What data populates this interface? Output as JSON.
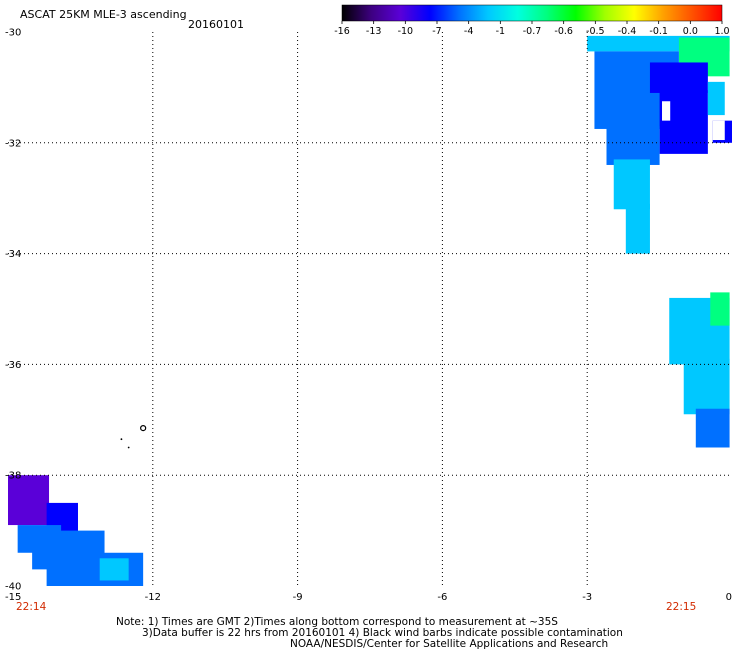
{
  "header": {
    "title": "ASCAT 25KM MLE-3 ascending",
    "date": "20160101"
  },
  "colorbar": {
    "tick_labels": [
      "-16",
      "-13",
      "-10",
      "-7",
      "-4",
      "-1",
      "-0.7",
      "-0.6",
      "-0.5",
      "-0.4",
      "-0.1",
      "0.0",
      "1.0"
    ],
    "gradient_stops": [
      "#000000",
      "#3d0080",
      "#5a00d8",
      "#0000ff",
      "#0070ff",
      "#00c8ff",
      "#00ffe0",
      "#00ff80",
      "#00ff00",
      "#a0ff00",
      "#ffff00",
      "#ffa000",
      "#ff5000",
      "#ff0000"
    ]
  },
  "map": {
    "lat_labels": [
      "-30",
      "-32",
      "-34",
      "-36",
      "-38",
      "-40"
    ],
    "lon_labels": [
      "-15",
      "-12",
      "-9",
      "-6",
      "-3",
      "0"
    ],
    "lat_range": [
      -40,
      -30
    ],
    "lon_range": [
      -15,
      0
    ],
    "times": {
      "left": "22:14",
      "right": "22:15"
    },
    "swaths": [
      {
        "name": "upper-right-swath",
        "cells": [
          {
            "lon0": -3.0,
            "lon1": -0.05,
            "lat0": -30.07,
            "lat1": -30.35,
            "value": -1
          },
          {
            "lon0": -1.1,
            "lon1": -0.05,
            "lat0": -30.1,
            "lat1": -30.8,
            "value": -0.5
          },
          {
            "lon0": -2.85,
            "lon1": -1.1,
            "lat0": -30.35,
            "lat1": -31.75,
            "value": -4
          },
          {
            "lon0": -1.7,
            "lon1": -0.5,
            "lat0": -30.55,
            "lat1": -31.1,
            "value": -7
          },
          {
            "lon0": -1.5,
            "lon1": -0.5,
            "lat0": -31.05,
            "lat1": -32.2,
            "value": -8
          },
          {
            "lon0": -0.4,
            "lon1": 0,
            "lat0": -31.6,
            "lat1": -32.0,
            "value": -8
          },
          {
            "lon0": -0.5,
            "lon1": -0.15,
            "lat0": -30.9,
            "lat1": -31.5,
            "value": -2
          },
          {
            "lon0": -2.6,
            "lon1": -1.5,
            "lat0": -31.7,
            "lat1": -32.4,
            "value": -5
          },
          {
            "lon0": -2.45,
            "lon1": -1.7,
            "lat0": -32.3,
            "lat1": -33.2,
            "value": -1.5
          },
          {
            "lon0": -2.2,
            "lon1": -1.7,
            "lat0": -33.1,
            "lat1": -34.0,
            "value": -2
          }
        ]
      },
      {
        "name": "mid-right-swath",
        "cells": [
          {
            "lon0": -1.3,
            "lon1": -0.05,
            "lat0": -34.8,
            "lat1": -36.0,
            "value": -1
          },
          {
            "lon0": -0.45,
            "lon1": -0.05,
            "lat0": -34.7,
            "lat1": -35.3,
            "value": -0.6
          },
          {
            "lon0": -1.0,
            "lon1": -0.05,
            "lat0": -35.9,
            "lat1": -36.9,
            "value": -3
          },
          {
            "lon0": -0.75,
            "lon1": -0.05,
            "lat0": -36.8,
            "lat1": -37.5,
            "value": -4
          }
        ]
      },
      {
        "name": "lower-left-swath",
        "cells": [
          {
            "lon0": -15,
            "lon1": -14.15,
            "lat0": -38.0,
            "lat1": -38.9,
            "value": -10
          },
          {
            "lon0": -14.2,
            "lon1": -13.55,
            "lat0": -38.5,
            "lat1": -39.1,
            "value": -7
          },
          {
            "lon0": -14.8,
            "lon1": -13.9,
            "lat0": -38.9,
            "lat1": -39.4,
            "value": -6
          },
          {
            "lon0": -14.5,
            "lon1": -13.0,
            "lat0": -39.0,
            "lat1": -39.7,
            "value": -5.5
          },
          {
            "lon0": -14.2,
            "lon1": -12.2,
            "lat0": -39.4,
            "lat1": -40.0,
            "value": -5
          },
          {
            "lon0": -13.1,
            "lon1": -12.5,
            "lat0": -39.5,
            "lat1": -39.9,
            "value": -3
          }
        ]
      }
    ]
  },
  "notes": {
    "line1": "Note: 1) Times are GMT 2)Times along bottom correspond to measurement at ~35S",
    "line2": "3)Data buffer is 22 hrs from 20160101 4) Black wind barbs indicate possible contamination",
    "line3": "NOAA/NESDIS/Center for Satellite Applications and Research"
  }
}
